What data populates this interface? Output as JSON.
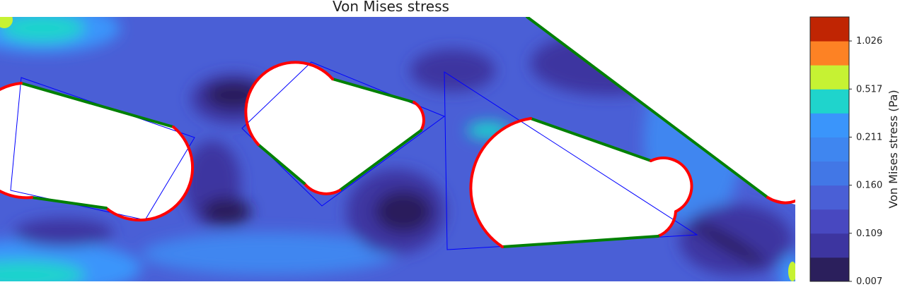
{
  "chart_data": {
    "type": "heatmap",
    "title": "Von Mises stress",
    "colorbar": {
      "label": "Von Mises stress (Pa)",
      "ticks": [
        "0.007",
        "0.109",
        "0.160",
        "0.211",
        "0.517",
        "1.026"
      ],
      "levels": [
        "#2b1f5c",
        "#3d35a0",
        "#4848c0",
        "#4a5fd6",
        "#4277e6",
        "#3f86f0",
        "#3a95fb",
        "#1fd4cc",
        "#c6f233",
        "#fd8224",
        "#c02503"
      ]
    },
    "background_color": "#4a5fd6",
    "boundary_colors": {
      "arc": "#ff0000",
      "straight": "#008000",
      "outline": "#0000ff"
    }
  }
}
